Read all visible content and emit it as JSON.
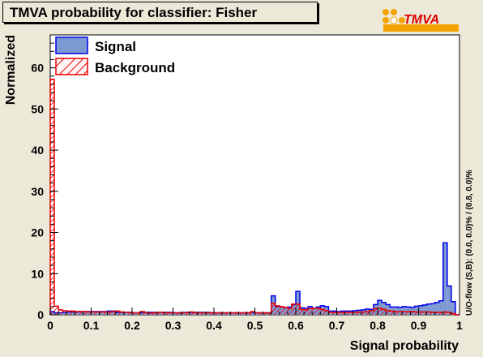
{
  "page": {
    "title": "TMVA probability for classifier: Fisher",
    "logo_text": "TMVA"
  },
  "chart_data": {
    "type": "histogram",
    "xlabel": "Signal probability",
    "ylabel": "Normalized",
    "side_label": "U/O-flow (S,B): (0.0, 0.0)% / (0.8, 0.0)%",
    "xlim": [
      0,
      1
    ],
    "ylim": [
      0,
      68
    ],
    "xticks": [
      0,
      0.1,
      0.2,
      0.3,
      0.4,
      0.5,
      0.6,
      0.7,
      0.8,
      0.9,
      1
    ],
    "yticks": [
      0,
      10,
      20,
      30,
      40,
      50,
      60
    ],
    "bins": 100,
    "legend": {
      "placement": "top-left"
    },
    "series": [
      {
        "name": "Signal",
        "fill": "#7d99d1",
        "line": "#0000ee",
        "values": [
          0.8,
          0.5,
          0.5,
          0.6,
          0.7,
          0.7,
          0.7,
          0.8,
          0.8,
          0.8,
          0.8,
          0.8,
          0.8,
          0.8,
          0.9,
          0.9,
          0.6,
          0.6,
          0.6,
          0.6,
          0.5,
          0.5,
          0.6,
          0.6,
          0.6,
          0.6,
          0.6,
          0.6,
          0.6,
          0.6,
          0.5,
          0.5,
          0.6,
          0.6,
          0.6,
          0.6,
          0.6,
          0.6,
          0.6,
          0.5,
          0.5,
          0.5,
          0.5,
          0.5,
          0.5,
          0.5,
          0.5,
          0.5,
          0.5,
          0.6,
          0.5,
          0.5,
          0.5,
          0.5,
          4.6,
          2.0,
          2.0,
          1.8,
          1.9,
          2.5,
          5.7,
          1.7,
          1.6,
          2.0,
          1.6,
          1.9,
          2.2,
          2.0,
          0.9,
          0.9,
          0.8,
          0.9,
          0.9,
          0.9,
          1.0,
          1.1,
          1.2,
          1.4,
          1.3,
          2.5,
          3.5,
          3.0,
          2.5,
          1.9,
          1.9,
          1.8,
          2.0,
          1.9,
          1.8,
          2.1,
          2.2,
          2.4,
          2.6,
          2.7,
          3.0,
          3.4,
          17.5,
          7.0,
          3.2,
          0
        ]
      },
      {
        "name": "Background",
        "fill": "none",
        "line": "#ee0000",
        "values": [
          57.2,
          2.1,
          1.2,
          1.0,
          0.9,
          0.9,
          0.8,
          0.8,
          0.8,
          0.7,
          0.7,
          0.7,
          0.7,
          0.7,
          0.7,
          0.8,
          0.9,
          0.7,
          0.6,
          0.6,
          0.5,
          0.5,
          0.8,
          0.5,
          0.4,
          0.5,
          0.6,
          0.6,
          0.5,
          0.5,
          0.5,
          0.5,
          0.5,
          0.5,
          0.7,
          0.5,
          0.5,
          0.5,
          0.5,
          0.5,
          0.5,
          0.5,
          0.5,
          0.5,
          0.5,
          0.5,
          0.5,
          0.5,
          0.5,
          0.8,
          0.5,
          0.5,
          0.5,
          0.4,
          2.8,
          2.2,
          2.0,
          1.8,
          1.5,
          2.6,
          2.6,
          1.3,
          1.2,
          1.5,
          1.6,
          1.6,
          1.3,
          1.0,
          0.6,
          0.6,
          0.6,
          0.6,
          0.6,
          0.6,
          0.6,
          0.7,
          0.7,
          0.8,
          1.0,
          1.5,
          1.6,
          1.3,
          1.0,
          0.9,
          0.8,
          0.8,
          0.8,
          0.8,
          0.8,
          0.7,
          0.7,
          0.7,
          0.7,
          0.6,
          0.6,
          0.6,
          0.7,
          0.6,
          0.3,
          0
        ]
      }
    ]
  }
}
